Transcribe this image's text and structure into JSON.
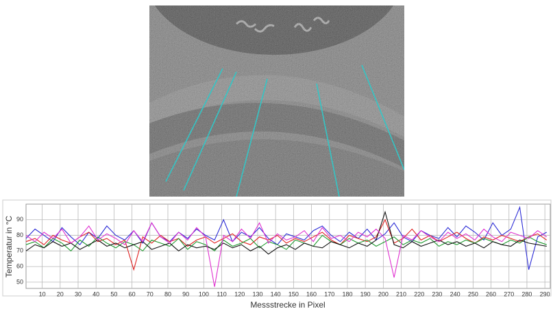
{
  "chart_data": {
    "type": "line",
    "xlabel": "Messstrecke in Pixel",
    "ylabel": "Temperatur in °C",
    "x": [
      1,
      6,
      11,
      16,
      21,
      26,
      31,
      36,
      41,
      46,
      51,
      56,
      61,
      66,
      71,
      76,
      81,
      86,
      91,
      96,
      101,
      106,
      111,
      116,
      121,
      126,
      131,
      136,
      141,
      146,
      151,
      156,
      161,
      166,
      171,
      176,
      181,
      186,
      191,
      196,
      201,
      206,
      211,
      216,
      221,
      226,
      231,
      236,
      241,
      246,
      251,
      256,
      261,
      266,
      271,
      276,
      281,
      286,
      291
    ],
    "series": [
      {
        "color": "#2b2bd6",
        "values": [
          78,
          84,
          80,
          76,
          85,
          79,
          74,
          82,
          78,
          86,
          80,
          77,
          83,
          75,
          88,
          79,
          76,
          82,
          78,
          84,
          80,
          77,
          90,
          76,
          82,
          79,
          85,
          78,
          74,
          81,
          79,
          77,
          83,
          86,
          80,
          76,
          82,
          78,
          84,
          77,
          81,
          88,
          79,
          76,
          83,
          80,
          78,
          85,
          79,
          86,
          82,
          77,
          88,
          80,
          84,
          98,
          58,
          79,
          82
        ]
      },
      {
        "color": "#e02020",
        "values": [
          76,
          78,
          74,
          80,
          77,
          75,
          79,
          82,
          76,
          78,
          74,
          77,
          58,
          79,
          75,
          80,
          76,
          78,
          73,
          77,
          79,
          75,
          78,
          81,
          76,
          74,
          79,
          77,
          80,
          75,
          78,
          76,
          79,
          82,
          77,
          74,
          80,
          78,
          76,
          79,
          90,
          75,
          78,
          84,
          77,
          80,
          76,
          79,
          82,
          78,
          75,
          79,
          77,
          80,
          78,
          76,
          79,
          81,
          77
        ]
      },
      {
        "color": "#1f9a2f",
        "values": [
          74,
          76,
          72,
          78,
          75,
          70,
          77,
          73,
          79,
          75,
          72,
          76,
          74,
          70,
          77,
          75,
          73,
          78,
          71,
          76,
          74,
          70,
          77,
          73,
          75,
          78,
          72,
          76,
          74,
          71,
          77,
          75,
          73,
          80,
          76,
          74,
          78,
          75,
          77,
          73,
          76,
          79,
          74,
          77,
          75,
          78,
          73,
          76,
          74,
          77,
          75,
          78,
          76,
          74,
          77,
          75,
          79,
          76,
          74
        ]
      },
      {
        "color": "#111111",
        "values": [
          70,
          74,
          72,
          76,
          73,
          75,
          71,
          74,
          77,
          73,
          75,
          72,
          74,
          76,
          71,
          73,
          75,
          70,
          74,
          72,
          73,
          71,
          75,
          72,
          74,
          70,
          73,
          68,
          72,
          74,
          71,
          75,
          73,
          72,
          76,
          74,
          72,
          75,
          73,
          77,
          95,
          74,
          72,
          76,
          73,
          75,
          77,
          74,
          76,
          73,
          75,
          72,
          76,
          74,
          73,
          77,
          75,
          74,
          73
        ]
      },
      {
        "color": "#e030d0",
        "values": [
          80,
          76,
          82,
          78,
          84,
          75,
          79,
          86,
          77,
          81,
          78,
          74,
          83,
          76,
          88,
          79,
          75,
          82,
          77,
          85,
          79,
          47,
          80,
          76,
          84,
          78,
          88,
          75,
          81,
          77,
          79,
          83,
          76,
          85,
          78,
          80,
          76,
          82,
          79,
          84,
          78,
          53,
          80,
          77,
          83,
          79,
          76,
          82,
          78,
          81,
          77,
          84,
          79,
          76,
          82,
          80,
          78,
          83,
          79
        ]
      }
    ],
    "xlim": [
      1,
      293
    ],
    "ylim": [
      46,
      100
    ],
    "xticks": [
      10,
      20,
      30,
      40,
      50,
      60,
      70,
      80,
      90,
      100,
      110,
      120,
      130,
      140,
      150,
      160,
      170,
      180,
      190,
      200,
      210,
      220,
      230,
      240,
      250,
      260,
      270,
      280,
      290
    ],
    "yticks": [
      50,
      60,
      70,
      80,
      90
    ],
    "grid": true
  }
}
